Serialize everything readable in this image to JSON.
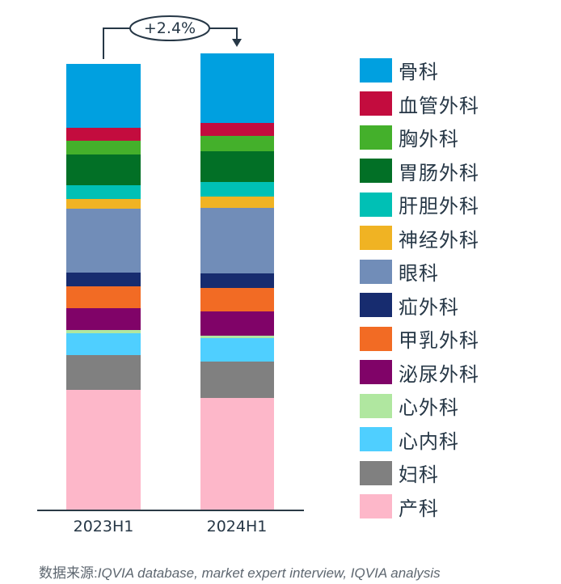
{
  "chart_data": {
    "type": "bar",
    "stacked": true,
    "title": "",
    "xlabel": "",
    "ylabel": "",
    "categories": [
      "2023H1",
      "2024H1"
    ],
    "units": "share of 2023H1 total (=100), estimated from pixel heights",
    "series": [
      {
        "name": "骨科",
        "color": "#00A0E0",
        "values": [
          14.3,
          15.6
        ]
      },
      {
        "name": "血管外科",
        "color": "#C30C3E",
        "values": [
          2.9,
          2.9
        ]
      },
      {
        "name": "胸外科",
        "color": "#44B02B",
        "values": [
          3.1,
          3.4
        ]
      },
      {
        "name": "胃肠外科",
        "color": "#027026",
        "values": [
          6.9,
          6.9
        ]
      },
      {
        "name": "肝胆外科",
        "color": "#00C0B5",
        "values": [
          3.1,
          3.4
        ]
      },
      {
        "name": "神经外科",
        "color": "#F0B323",
        "values": [
          2.2,
          2.4
        ]
      },
      {
        "name": "眼科",
        "color": "#718DB8",
        "values": [
          14.3,
          14.7
        ]
      },
      {
        "name": "疝外科",
        "color": "#172C6F",
        "values": [
          3.1,
          3.3
        ]
      },
      {
        "name": "甲乳外科",
        "color": "#F26B24",
        "values": [
          4.9,
          5.3
        ]
      },
      {
        "name": "泌尿外科",
        "color": "#800368",
        "values": [
          4.9,
          5.4
        ]
      },
      {
        "name": "心外科",
        "color": "#B0E7A0",
        "values": [
          0.7,
          0.5
        ]
      },
      {
        "name": "心内科",
        "color": "#4FCFFF",
        "values": [
          4.9,
          5.3
        ]
      },
      {
        "name": "妇科",
        "color": "#808080",
        "values": [
          7.8,
          8.2
        ]
      },
      {
        "name": "产科",
        "color": "#FDB7C9",
        "values": [
          27.0,
          25.2
        ]
      }
    ],
    "totals": [
      100,
      102.4
    ],
    "annotations": [
      {
        "text": "+2.4%",
        "from": "2023H1",
        "to": "2024H1"
      }
    ],
    "legend_position": "right",
    "grid": false
  },
  "annotation": {
    "growth_label": "+2.4%"
  },
  "x_axis": {
    "labels": [
      "2023H1",
      "2024H1"
    ]
  },
  "legend": {
    "items": [
      {
        "label": "骨科",
        "color": "#00A0E0"
      },
      {
        "label": "血管外科",
        "color": "#C30C3E"
      },
      {
        "label": "胸外科",
        "color": "#44B02B"
      },
      {
        "label": "胃肠外科",
        "color": "#027026"
      },
      {
        "label": "肝胆外科",
        "color": "#00C0B5"
      },
      {
        "label": "神经外科",
        "color": "#F0B323"
      },
      {
        "label": "眼科",
        "color": "#718DB8"
      },
      {
        "label": "疝外科",
        "color": "#172C6F"
      },
      {
        "label": "甲乳外科",
        "color": "#F26B24"
      },
      {
        "label": "泌尿外科",
        "color": "#800368"
      },
      {
        "label": "心外科",
        "color": "#B0E7A0"
      },
      {
        "label": "心内科",
        "color": "#4FCFFF"
      },
      {
        "label": "妇科",
        "color": "#808080"
      },
      {
        "label": "产科",
        "color": "#FDB7C9"
      }
    ]
  },
  "footer": {
    "source_prefix": "数据来源:",
    "source_text": "IQVIA database, market expert interview, IQVIA analysis"
  }
}
